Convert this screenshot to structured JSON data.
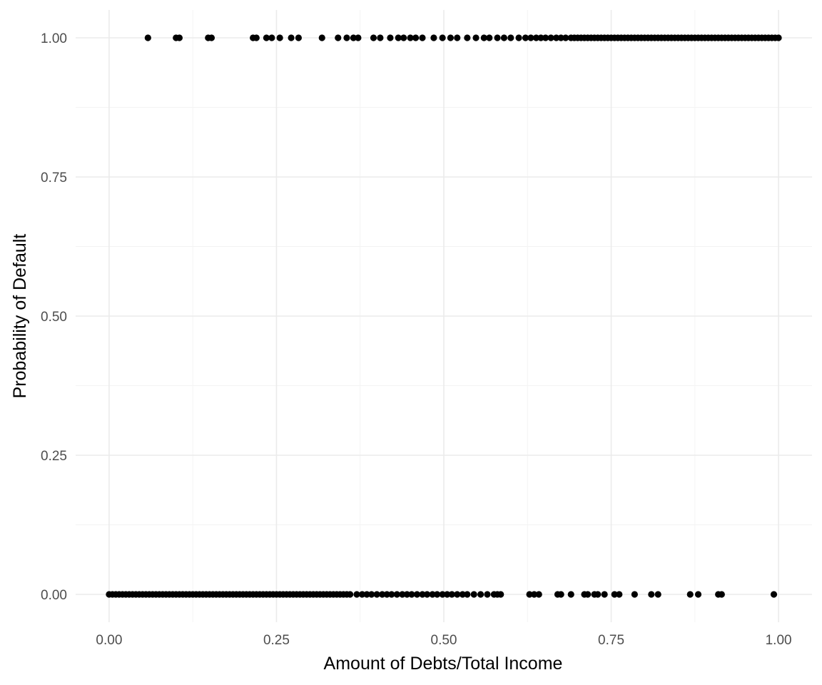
{
  "chart_data": {
    "type": "scatter",
    "title": "",
    "xlabel": "Amount of Debts/Total Income",
    "ylabel": "Probability of Default",
    "xlim": [
      -0.05,
      1.05
    ],
    "ylim": [
      -0.05,
      1.05
    ],
    "x_ticks": [
      {
        "value": 0.0,
        "label": "0.00"
      },
      {
        "value": 0.25,
        "label": "0.25"
      },
      {
        "value": 0.5,
        "label": "0.50"
      },
      {
        "value": 0.75,
        "label": "0.75"
      },
      {
        "value": 1.0,
        "label": "1.00"
      }
    ],
    "y_ticks": [
      {
        "value": 0.0,
        "label": "0.00"
      },
      {
        "value": 0.25,
        "label": "0.25"
      },
      {
        "value": 0.5,
        "label": "0.50"
      },
      {
        "value": 0.75,
        "label": "0.75"
      },
      {
        "value": 1.0,
        "label": "1.00"
      }
    ],
    "grid": true,
    "legend": "none",
    "point_color": "#000000",
    "series": [
      {
        "y": 1,
        "x": [
          0.058,
          0.1,
          0.105,
          0.148,
          0.153,
          0.215,
          0.22,
          0.235,
          0.243,
          0.255,
          0.272,
          0.283,
          0.318,
          0.342,
          0.355,
          0.365,
          0.372,
          0.395,
          0.405,
          0.42,
          0.432,
          0.44,
          0.45,
          0.458,
          0.468,
          0.485,
          0.498,
          0.51,
          0.52,
          0.535,
          0.548,
          0.56,
          0.568,
          0.58,
          0.59,
          0.6,
          0.612,
          0.622,
          0.63,
          0.638,
          0.645,
          0.652,
          0.66,
          0.668,
          0.675,
          0.682,
          0.69,
          0.695,
          0.7,
          0.705,
          0.71,
          0.715,
          0.72,
          0.725,
          0.73,
          0.735,
          0.74,
          0.745,
          0.75,
          0.755,
          0.76,
          0.765,
          0.77,
          0.775,
          0.78,
          0.785,
          0.79,
          0.795,
          0.8,
          0.805,
          0.81,
          0.815,
          0.82,
          0.825,
          0.83,
          0.835,
          0.84,
          0.845,
          0.85,
          0.855,
          0.86,
          0.865,
          0.87,
          0.875,
          0.88,
          0.885,
          0.89,
          0.895,
          0.9,
          0.905,
          0.91,
          0.915,
          0.92,
          0.925,
          0.93,
          0.935,
          0.94,
          0.945,
          0.95,
          0.955,
          0.96,
          0.965,
          0.97,
          0.975,
          0.98,
          0.985,
          0.99,
          0.995,
          1.0
        ]
      },
      {
        "y": 0,
        "x": [
          0.0,
          0.005,
          0.01,
          0.015,
          0.02,
          0.025,
          0.03,
          0.035,
          0.04,
          0.045,
          0.05,
          0.055,
          0.06,
          0.065,
          0.07,
          0.075,
          0.08,
          0.085,
          0.09,
          0.095,
          0.1,
          0.105,
          0.11,
          0.115,
          0.12,
          0.125,
          0.13,
          0.135,
          0.14,
          0.145,
          0.15,
          0.155,
          0.16,
          0.165,
          0.17,
          0.175,
          0.18,
          0.185,
          0.19,
          0.195,
          0.2,
          0.205,
          0.21,
          0.215,
          0.22,
          0.225,
          0.23,
          0.235,
          0.24,
          0.245,
          0.25,
          0.255,
          0.26,
          0.265,
          0.27,
          0.275,
          0.28,
          0.285,
          0.29,
          0.295,
          0.3,
          0.305,
          0.31,
          0.315,
          0.32,
          0.325,
          0.33,
          0.335,
          0.34,
          0.345,
          0.35,
          0.355,
          0.36,
          0.37,
          0.378,
          0.385,
          0.392,
          0.4,
          0.408,
          0.415,
          0.422,
          0.43,
          0.438,
          0.445,
          0.452,
          0.46,
          0.468,
          0.475,
          0.483,
          0.49,
          0.498,
          0.505,
          0.512,
          0.52,
          0.528,
          0.535,
          0.545,
          0.555,
          0.565,
          0.575,
          0.58,
          0.585,
          0.628,
          0.635,
          0.642,
          0.67,
          0.675,
          0.69,
          0.71,
          0.715,
          0.725,
          0.73,
          0.74,
          0.755,
          0.762,
          0.785,
          0.81,
          0.82,
          0.868,
          0.88,
          0.91,
          0.915,
          0.993
        ]
      }
    ]
  }
}
